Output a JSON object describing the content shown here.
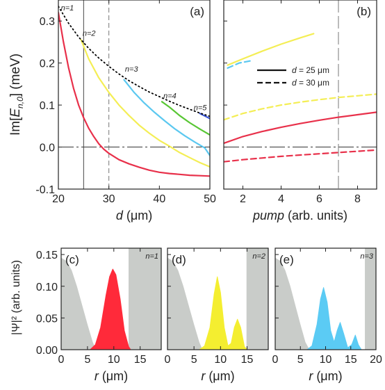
{
  "chart_data": [
    {
      "id": "a",
      "type": "line",
      "panel_label": "(a)",
      "ylabel": "Im[E",
      "ylabel_sub": "n,0",
      "ylabel_end": "] (meV)",
      "xlabel": "d (μm)",
      "xlim": [
        20,
        50
      ],
      "ylim": [
        -0.1,
        0.35
      ],
      "xticks": [
        "20",
        "30",
        "40",
        "50"
      ],
      "xtick_values": [
        20,
        30,
        40,
        50
      ],
      "yticks": [
        "-0.1",
        "0.0",
        "0.1",
        "0.2",
        "0.3"
      ],
      "ytick_values": [
        -0.1,
        0.0,
        0.1,
        0.2,
        0.3
      ],
      "vlines": [
        {
          "x": 25,
          "style": "solid"
        },
        {
          "x": 30,
          "style": "dashed"
        }
      ],
      "hline": 0,
      "series": [
        {
          "name": "n=1",
          "color": "#e8304a",
          "x": [
            20,
            21,
            22,
            23,
            24,
            25,
            26,
            27,
            28,
            29,
            30,
            32,
            34,
            36,
            38,
            40,
            42,
            44,
            46,
            48,
            50
          ],
          "y": [
            0.32,
            0.25,
            0.19,
            0.14,
            0.1,
            0.07,
            0.045,
            0.025,
            0.008,
            -0.005,
            -0.015,
            -0.03,
            -0.04,
            -0.048,
            -0.055,
            -0.06,
            -0.063,
            -0.065,
            -0.067,
            -0.068,
            -0.069
          ]
        },
        {
          "name": "n=2",
          "color": "#f4ee55",
          "x": [
            24.5,
            26,
            28,
            30,
            32,
            34,
            36,
            38,
            40,
            42,
            44,
            46,
            48,
            50
          ],
          "y": [
            0.255,
            0.21,
            0.165,
            0.13,
            0.1,
            0.075,
            0.052,
            0.033,
            0.016,
            0.002,
            -0.013,
            -0.025,
            -0.037,
            -0.047
          ]
        },
        {
          "name": "n=3",
          "color": "#5bc8f0",
          "x": [
            33,
            35,
            37,
            39,
            41,
            43,
            45,
            47,
            49,
            50
          ],
          "y": [
            0.16,
            0.13,
            0.105,
            0.083,
            0.063,
            0.044,
            0.027,
            0.012,
            -0.002,
            -0.02
          ]
        },
        {
          "name": "n=4",
          "color": "#58c633",
          "x": [
            40.5,
            42,
            44,
            46,
            48,
            50
          ],
          "y": [
            0.108,
            0.095,
            0.075,
            0.058,
            0.043,
            0.029
          ]
        },
        {
          "name": "n=5",
          "color": "#3a56d6",
          "x": [
            48,
            49,
            50
          ],
          "y": [
            0.08,
            0.074,
            0.068
          ]
        },
        {
          "name": "envelope",
          "color": "#000000",
          "style": "dotted",
          "x": [
            20,
            22,
            24,
            26,
            28,
            30,
            32,
            34,
            36,
            38,
            40,
            42,
            44,
            46,
            48,
            50
          ],
          "y": [
            0.335,
            0.295,
            0.262,
            0.235,
            0.212,
            0.192,
            0.174,
            0.158,
            0.144,
            0.131,
            0.12,
            0.109,
            0.099,
            0.09,
            0.081,
            0.073
          ]
        }
      ],
      "annotations": [
        {
          "text": "n=1",
          "x": 20.5,
          "y": 0.325
        },
        {
          "text": "n=2",
          "x": 24.8,
          "y": 0.265
        },
        {
          "text": "n=3",
          "x": 33.2,
          "y": 0.18
        },
        {
          "text": "n=4",
          "x": 40.8,
          "y": 0.116
        },
        {
          "text": "n=5",
          "x": 46.8,
          "y": 0.088
        }
      ]
    },
    {
      "id": "b",
      "type": "line",
      "panel_label": "(b)",
      "xlabel": "pump (arb. units)",
      "xlim": [
        1,
        9
      ],
      "ylim": [
        -0.1,
        0.35
      ],
      "xticks": [
        "2",
        "4",
        "6",
        "8"
      ],
      "xtick_values": [
        2,
        4,
        6,
        8
      ],
      "vlines": [
        {
          "x": 7,
          "style": "longdash"
        }
      ],
      "hline": 0,
      "legend": [
        {
          "label": "d = 25 μm",
          "style": "solid"
        },
        {
          "label": "d = 30 μm",
          "style": "dashed"
        }
      ],
      "series": [
        {
          "name": "",
          "color": "#e8304a",
          "style": "solid",
          "x": [
            1,
            2,
            3,
            4,
            5,
            6,
            7,
            8,
            9
          ],
          "y": [
            0.009,
            0.025,
            0.037,
            0.047,
            0.056,
            0.064,
            0.071,
            0.077,
            0.083
          ]
        },
        {
          "name": "",
          "color": "#e8304a",
          "style": "dashed",
          "x": [
            1,
            2,
            3,
            4,
            5,
            6,
            7,
            8,
            9
          ],
          "y": [
            -0.035,
            -0.03,
            -0.026,
            -0.022,
            -0.019,
            -0.016,
            -0.013,
            -0.01,
            -0.007
          ]
        },
        {
          "name": "",
          "color": "#f4ee55",
          "style": "dashed",
          "x": [
            1,
            2,
            3,
            4,
            5,
            6,
            7,
            8,
            9
          ],
          "y": [
            0.065,
            0.08,
            0.091,
            0.1,
            0.107,
            0.113,
            0.118,
            0.122,
            0.126
          ]
        },
        {
          "name": "",
          "color": "#f4ee55",
          "style": "solid",
          "x": [
            1.2,
            2,
            3,
            4,
            5,
            5.7
          ],
          "y": [
            0.195,
            0.21,
            0.228,
            0.245,
            0.26,
            0.27
          ]
        },
        {
          "name": "",
          "color": "#5bc8f0",
          "style": "dashed",
          "x": [
            1.2,
            1.8,
            2.5
          ],
          "y": [
            0.188,
            0.2,
            0.206
          ]
        }
      ]
    },
    {
      "id": "c",
      "type": "area",
      "panel_label": "(c)",
      "mode_label": "n=1",
      "ylabel": "|Ψ|² (arb. units)",
      "xlabel": "r (μm)",
      "xlim": [
        0,
        19
      ],
      "ylim": [
        0,
        0.16
      ],
      "xticks": [
        "0",
        "5",
        "10",
        "15"
      ],
      "xtick_values": [
        0,
        5,
        10,
        15
      ],
      "yticks": [
        "0.00",
        "0.05",
        "0.10",
        "0.15"
      ],
      "ytick_values": [
        0,
        0.05,
        0.1,
        0.15
      ],
      "barrier_start": 12.8,
      "potential": {
        "x": [
          0,
          1,
          2,
          3,
          4,
          5,
          6,
          6.6
        ],
        "y": [
          0.145,
          0.14,
          0.125,
          0.1,
          0.07,
          0.04,
          0.012,
          0
        ]
      },
      "density": {
        "color": "#ff2a3a",
        "x": [
          5.5,
          6.5,
          7.5,
          8.5,
          9.2,
          9.8,
          10.4,
          11.2,
          12,
          12.8,
          13.2
        ],
        "y": [
          0,
          0.008,
          0.035,
          0.085,
          0.115,
          0.127,
          0.118,
          0.08,
          0.03,
          0.005,
          0
        ]
      }
    },
    {
      "id": "d",
      "type": "area",
      "panel_label": "(d)",
      "mode_label": "n=2",
      "xlabel": "r (μm)",
      "xlim": [
        0,
        19
      ],
      "ylim": [
        0,
        0.16
      ],
      "xticks": [
        "0",
        "5",
        "10",
        "15"
      ],
      "xtick_values": [
        0,
        5,
        10,
        15
      ],
      "barrier_start": 14.9,
      "potential": {
        "x": [
          0,
          1,
          2,
          3,
          4,
          5,
          6,
          6.6
        ],
        "y": [
          0.145,
          0.14,
          0.125,
          0.1,
          0.07,
          0.04,
          0.012,
          0
        ]
      },
      "density": {
        "color": "#f4ee30",
        "x": [
          6,
          7,
          8,
          8.8,
          9.4,
          10,
          10.7,
          11.4,
          12,
          12.6,
          13.2,
          13.8,
          14.5,
          15
        ],
        "y": [
          0,
          0.006,
          0.035,
          0.088,
          0.115,
          0.09,
          0.035,
          0.006,
          0.01,
          0.035,
          0.048,
          0.035,
          0.005,
          0
        ]
      }
    },
    {
      "id": "e",
      "type": "area",
      "panel_label": "(e)",
      "mode_label": "n=3",
      "xlabel": "r (μm)",
      "xlim": [
        0,
        20
      ],
      "ylim": [
        0,
        0.16
      ],
      "xticks": [
        "0",
        "5",
        "10",
        "15",
        "20"
      ],
      "xtick_values": [
        0,
        5,
        10,
        15,
        20
      ],
      "barrier_start": 17.8,
      "potential": {
        "x": [
          0,
          1,
          2,
          3,
          4,
          5,
          6,
          6.8
        ],
        "y": [
          0.145,
          0.14,
          0.125,
          0.1,
          0.07,
          0.04,
          0.012,
          0
        ]
      },
      "density": {
        "color": "#5bcbf4",
        "x": [
          6.3,
          7.3,
          8.3,
          9,
          9.6,
          10.3,
          11,
          11.7,
          12.3,
          12.9,
          13.6,
          14.4,
          15.2,
          15.9,
          16.5,
          17.1
        ],
        "y": [
          0,
          0.006,
          0.04,
          0.08,
          0.098,
          0.075,
          0.03,
          0.012,
          0.03,
          0.043,
          0.025,
          0.003,
          0.008,
          0.023,
          0.008,
          0
        ]
      }
    }
  ]
}
